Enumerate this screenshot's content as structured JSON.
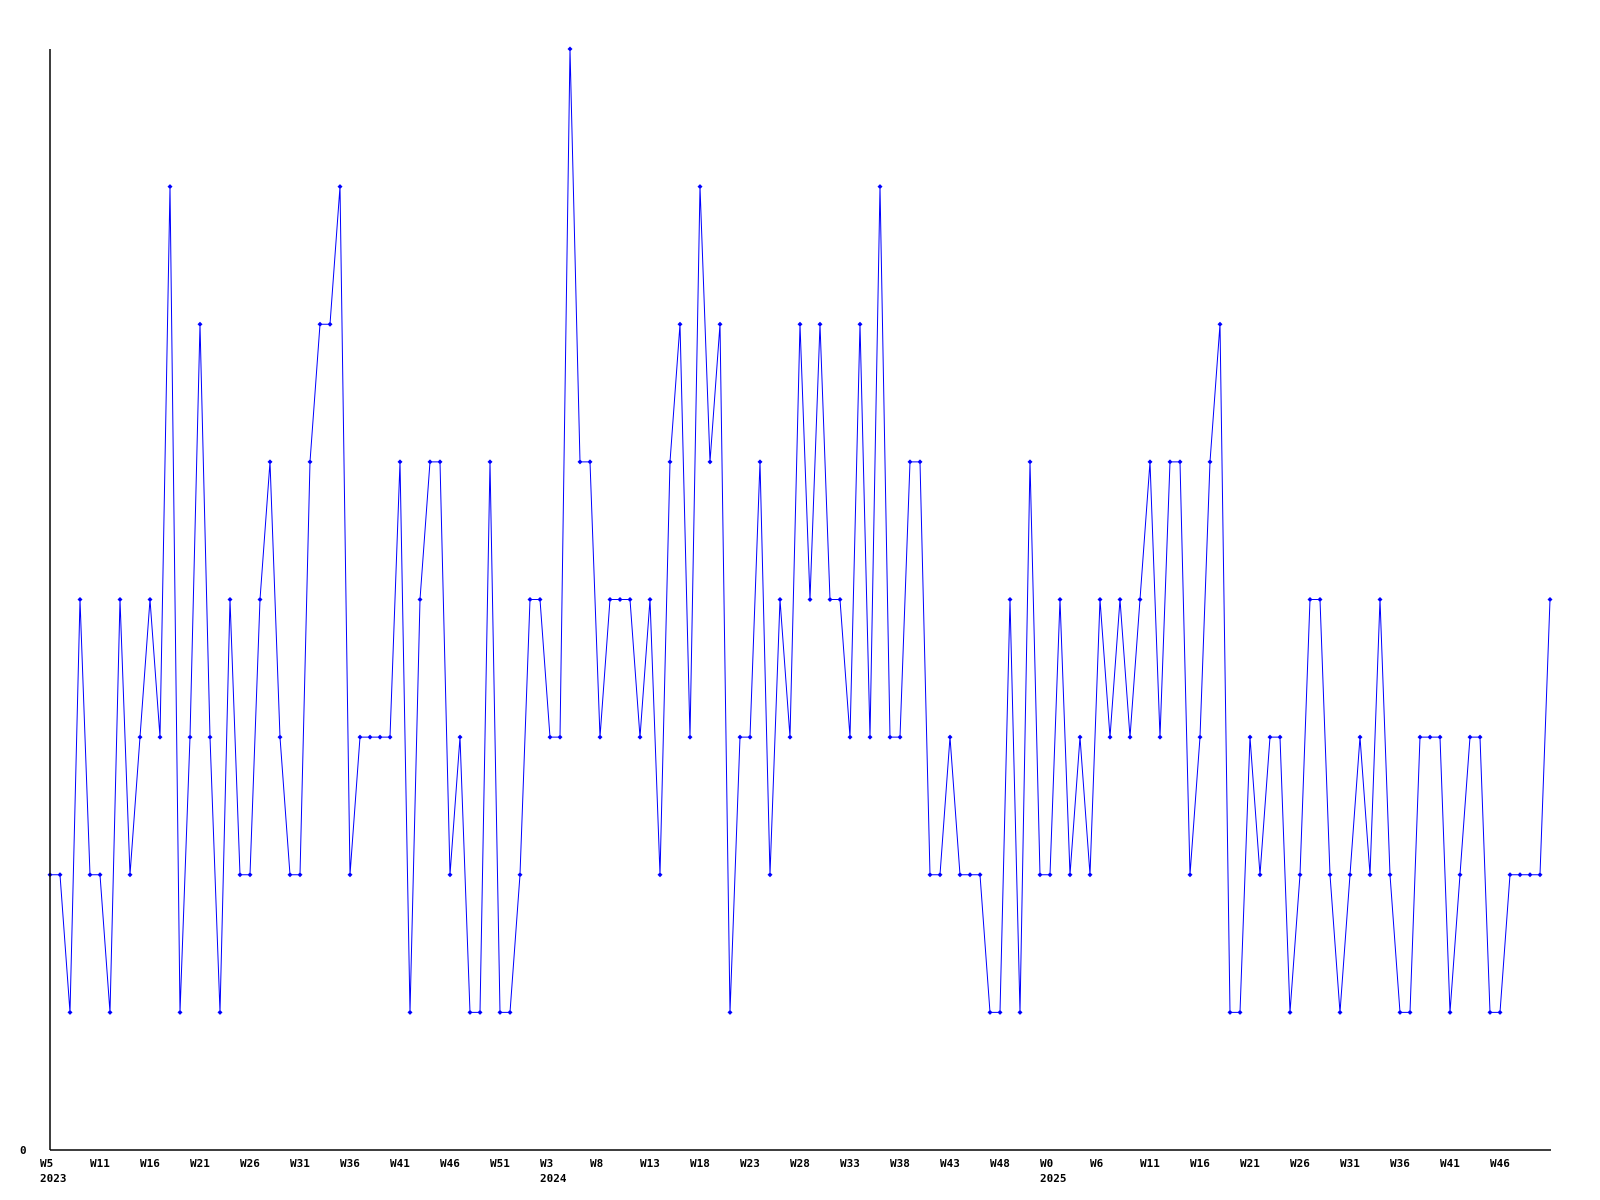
{
  "chart_data": {
    "type": "line",
    "title": "",
    "xlabel": "",
    "ylabel": "",
    "ylim": [
      0,
      8
    ],
    "y_tick_labels": [
      "0"
    ],
    "grid": false,
    "line_color": "#0000ff",
    "axis_color": "#000000",
    "x_tick_labels": [
      "W5",
      "W11",
      "W16",
      "W21",
      "W26",
      "W31",
      "W36",
      "W41",
      "W46",
      "W51",
      "W3",
      "W8",
      "W13",
      "W18",
      "W23",
      "W28",
      "W33",
      "W38",
      "W43",
      "W48",
      "W0",
      "W6",
      "W11",
      "W16",
      "W21",
      "W26",
      "W31",
      "W36",
      "W41",
      "W46"
    ],
    "year_labels": [
      {
        "label": "2023",
        "at_tick": "W5"
      },
      {
        "label": "2024",
        "at_tick": "W3"
      },
      {
        "label": "2025",
        "at_tick": "W0"
      }
    ],
    "series": [
      {
        "values": [
          2,
          2,
          1,
          4,
          2,
          2,
          1,
          4,
          2,
          3,
          4,
          3,
          7,
          1,
          3,
          6,
          3,
          1,
          4,
          2,
          2,
          4,
          5,
          3,
          2,
          2,
          5,
          6,
          6,
          7,
          2,
          3,
          3,
          3,
          3,
          5,
          1,
          4,
          5,
          5,
          2,
          3,
          1,
          1,
          5,
          1,
          1,
          2,
          4,
          4,
          3,
          3,
          8,
          5,
          5,
          3,
          4,
          4,
          4,
          3,
          4,
          2,
          5,
          6,
          3,
          7,
          5,
          6,
          1,
          3,
          3,
          5,
          2,
          4,
          3,
          6,
          4,
          6,
          4,
          4,
          3,
          6,
          3,
          7,
          3,
          3,
          5,
          5,
          2,
          2,
          3,
          2,
          2,
          2,
          1,
          1,
          4,
          1,
          5,
          2,
          2,
          4,
          2,
          3,
          2,
          4,
          3,
          4,
          3,
          4,
          5,
          3,
          5,
          5,
          2,
          3,
          5,
          6,
          1,
          1,
          3,
          2,
          3,
          3,
          1,
          2,
          4,
          4,
          2,
          1,
          2,
          3,
          2,
          4,
          2,
          1,
          1,
          3,
          3,
          3,
          1,
          2,
          3,
          3,
          1,
          1,
          2,
          2,
          2,
          2,
          4
        ]
      }
    ]
  }
}
